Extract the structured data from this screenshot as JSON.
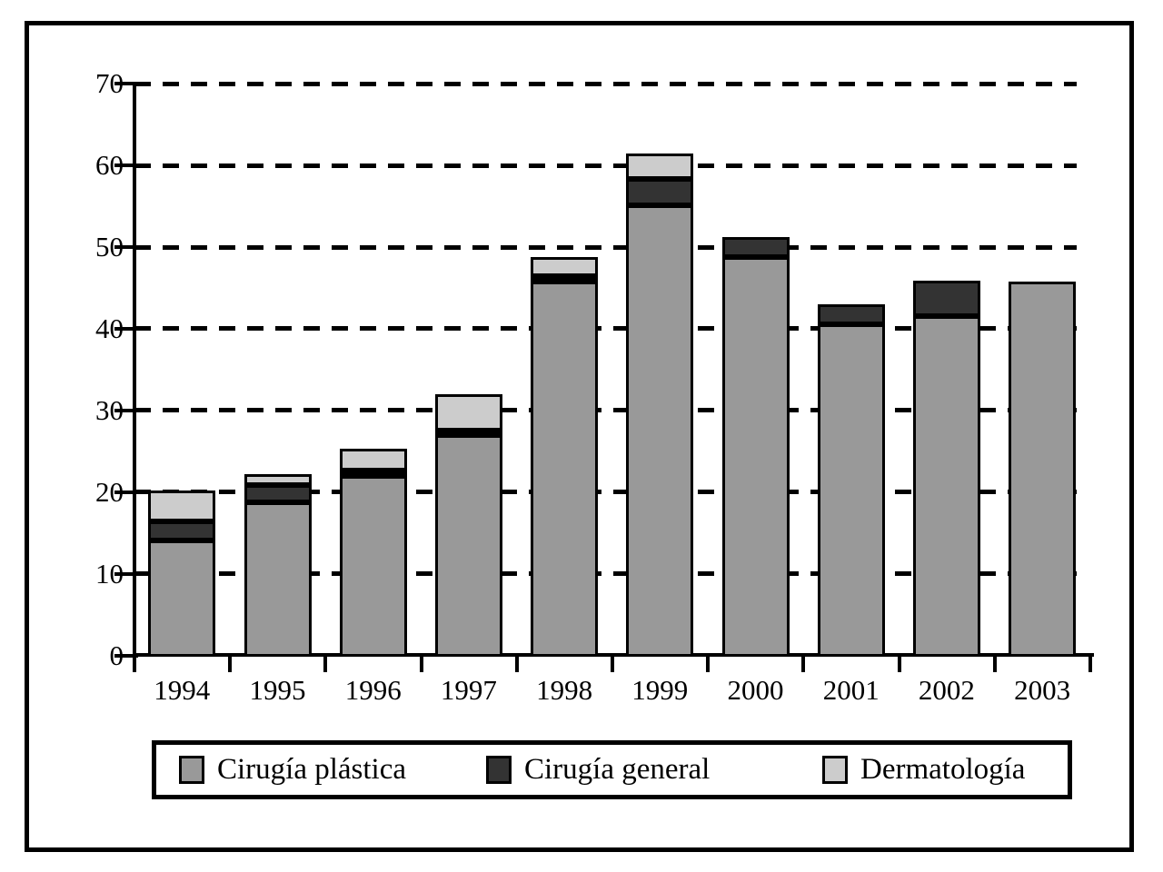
{
  "figure": {
    "background": "#ffffff",
    "frame_color": "#000000"
  },
  "colors": {
    "cirugia_plastica": "#999999",
    "cirugia_general": "#333333",
    "dermatologia": "#cccccc",
    "axis": "#000000"
  },
  "legend": {
    "position": "bottom",
    "items": [
      {
        "label": "Cirugía plástica",
        "color": "#999999"
      },
      {
        "label": "Cirugía general",
        "color": "#333333"
      },
      {
        "label": "Dermatología",
        "color": "#cccccc"
      }
    ]
  },
  "chart_data": {
    "type": "bar",
    "stacked": true,
    "title": "",
    "xlabel": "",
    "ylabel": "",
    "categories": [
      "1994",
      "1995",
      "1996",
      "1997",
      "1998",
      "1999",
      "2000",
      "2001",
      "2002",
      "2003"
    ],
    "series": [
      {
        "name": "Cirugía plástica",
        "color": "#999999",
        "values": [
          14.2,
          18.9,
          22.1,
          27.1,
          45.9,
          55.3,
          48.9,
          40.7,
          41.7,
          45.9
        ]
      },
      {
        "name": "Cirugía general",
        "color": "#333333",
        "values": [
          2.4,
          2.1,
          0.7,
          0.6,
          0.7,
          3.2,
          2.5,
          2.5,
          4.3,
          0
        ]
      },
      {
        "name": "Dermatología",
        "color": "#cccccc",
        "values": [
          3.8,
          1.4,
          2.7,
          4.4,
          2.4,
          3.1,
          0,
          0,
          0,
          0
        ]
      }
    ],
    "totals": [
      20.4,
      22.4,
      25.5,
      32.1,
      49.0,
      61.6,
      51.4,
      43.2,
      46.0,
      45.9
    ],
    "ylim": [
      0,
      70
    ],
    "yticks": [
      0,
      10,
      20,
      30,
      40,
      50,
      60,
      70
    ],
    "grid": "horizontal-dashed",
    "legend_position": "bottom-box"
  }
}
